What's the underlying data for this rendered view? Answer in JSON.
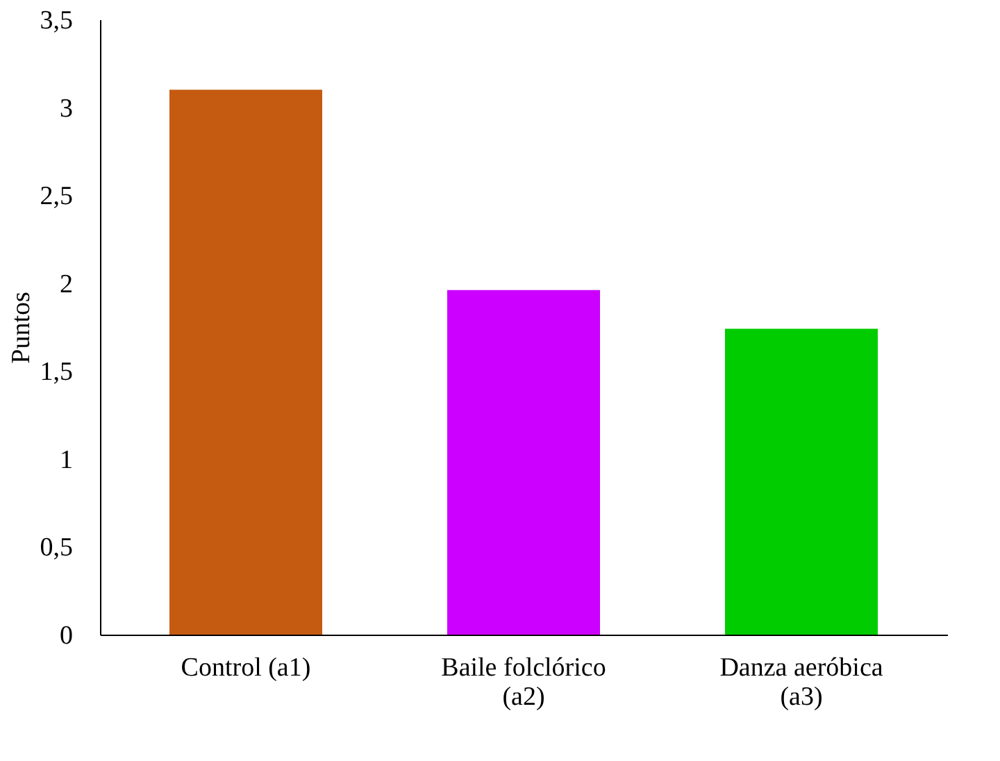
{
  "chart_data": {
    "type": "bar",
    "ylabel": "Puntos",
    "categories": [
      "Control (a1)",
      "Baile folclórico (a2)",
      "Danza aeróbica (a3)"
    ],
    "values": [
      3.1,
      1.96,
      1.74
    ],
    "colors": [
      "#c55a11",
      "#cc00ff",
      "#00cc00"
    ],
    "ylim": [
      0,
      3.5
    ],
    "yticks": [
      {
        "value": 0,
        "label": "0"
      },
      {
        "value": 0.5,
        "label": "0,5"
      },
      {
        "value": 1,
        "label": "1"
      },
      {
        "value": 1.5,
        "label": "1,5"
      },
      {
        "value": 2,
        "label": "2"
      },
      {
        "value": 2.5,
        "label": "2,5"
      },
      {
        "value": 3,
        "label": "3"
      },
      {
        "value": 3.5,
        "label": "3,5"
      }
    ],
    "grid": false
  }
}
